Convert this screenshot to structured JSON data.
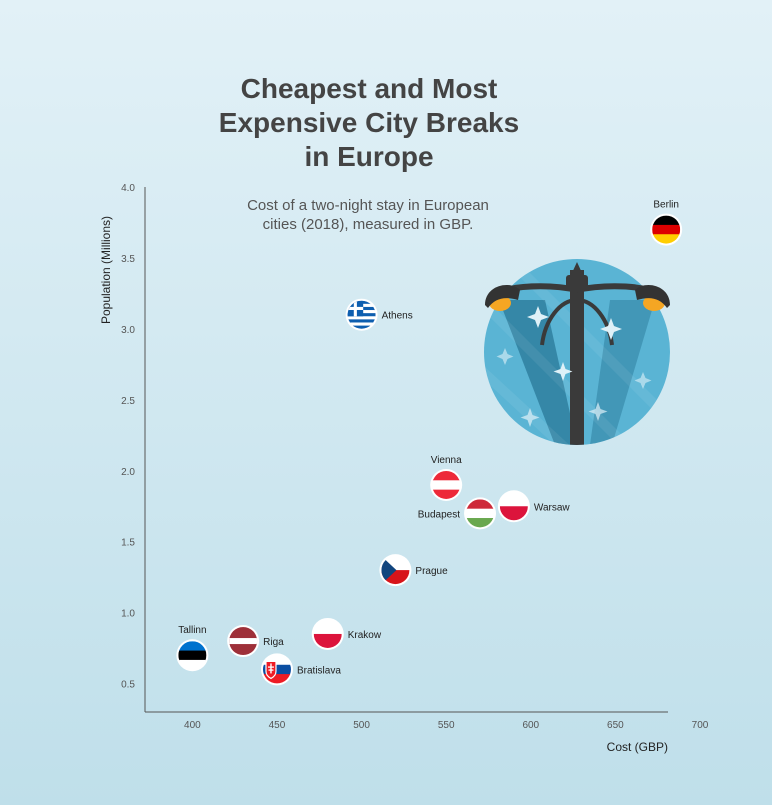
{
  "chart_data": {
    "type": "scatter",
    "title_lines": [
      "Cheapest and Most",
      "Expensive City Breaks",
      "in Europe"
    ],
    "subtitle_lines": [
      "Cost of a two-night stay in European",
      "cities (2018), measured in GBP."
    ],
    "xlabel": "Cost (GBP)",
    "ylabel": "Population (Millions)",
    "xlim": [
      372,
      700
    ],
    "ylim": [
      0.3,
      4.0
    ],
    "xticks": [
      "400",
      "450",
      "500",
      "550",
      "600",
      "650",
      "700"
    ],
    "yticks": [
      "0.5",
      "1.0",
      "1.5",
      "2.0",
      "2.5",
      "3.0",
      "3.5",
      "4.0"
    ],
    "grid": false,
    "points": [
      {
        "city": "Tallinn",
        "x": 400,
        "y": 0.7,
        "flag": "estonia-flag",
        "label_pos": "above"
      },
      {
        "city": "Riga",
        "x": 430,
        "y": 0.8,
        "flag": "latvia-flag",
        "label_pos": "right"
      },
      {
        "city": "Bratislava",
        "x": 450,
        "y": 0.6,
        "flag": "slovakia-flag",
        "label_pos": "right"
      },
      {
        "city": "Krakow",
        "x": 480,
        "y": 0.85,
        "flag": "poland-flag",
        "label_pos": "right"
      },
      {
        "city": "Prague",
        "x": 520,
        "y": 1.3,
        "flag": "czech-flag",
        "label_pos": "right"
      },
      {
        "city": "Athens",
        "x": 500,
        "y": 3.1,
        "flag": "greece-flag",
        "label_pos": "right"
      },
      {
        "city": "Vienna",
        "x": 550,
        "y": 1.9,
        "flag": "austria-flag",
        "label_pos": "above"
      },
      {
        "city": "Budapest",
        "x": 570,
        "y": 1.7,
        "flag": "hungary-flag",
        "label_pos": "left"
      },
      {
        "city": "Warsaw",
        "x": 590,
        "y": 1.75,
        "flag": "poland-flag",
        "label_pos": "right"
      },
      {
        "city": "Berlin",
        "x": 680,
        "y": 3.7,
        "flag": "germany-flag",
        "label_pos": "above"
      }
    ],
    "decoration": "street-lamp-illustration",
    "colors": {
      "background_top": "#e2f1f7",
      "background_bottom": "#bfdfea",
      "axis": "#555555",
      "lamp_circle": "#5ab4d4",
      "lamp_circle_dark": "#3c93b3"
    }
  }
}
